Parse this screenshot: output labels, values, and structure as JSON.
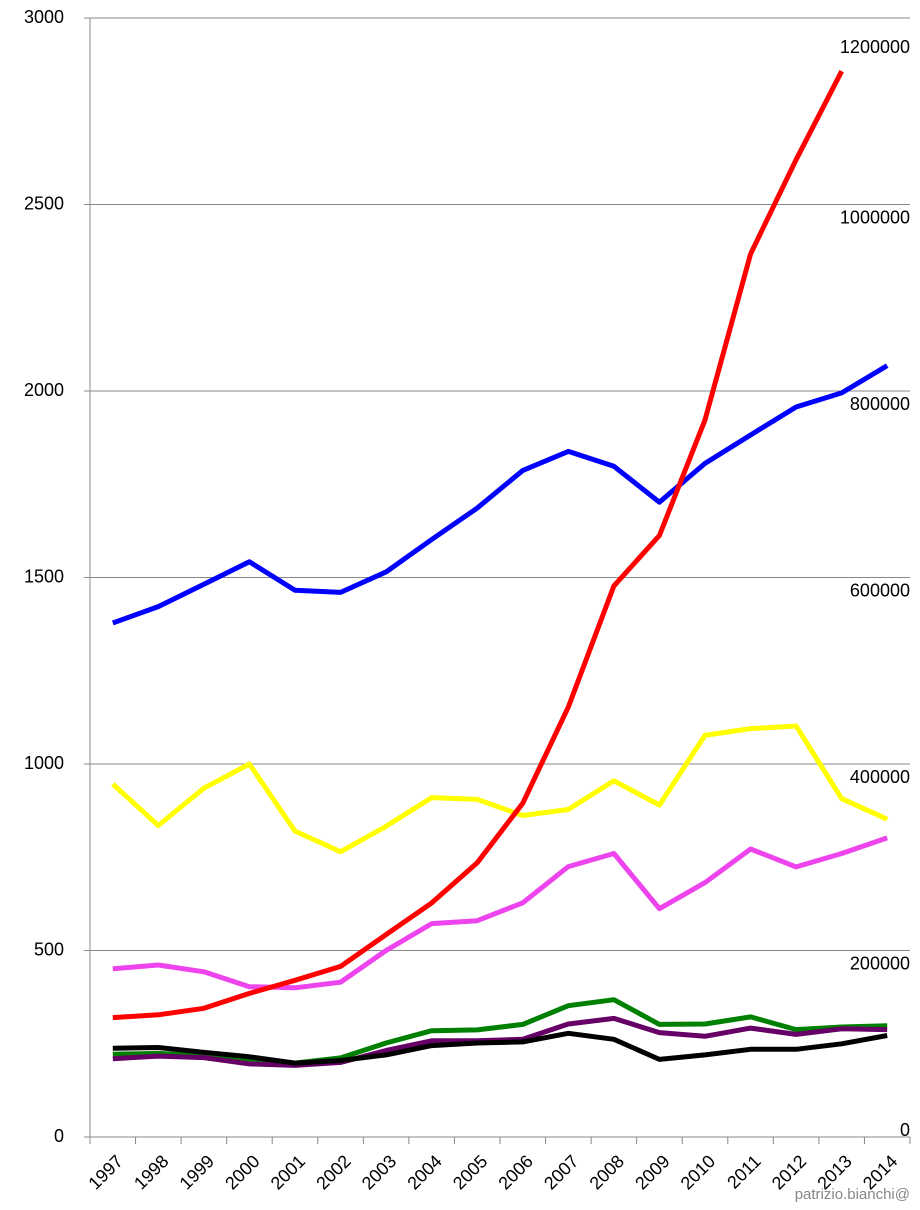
{
  "chart_data": {
    "type": "line",
    "categories": [
      "1997",
      "1998",
      "1999",
      "2000",
      "2001",
      "2002",
      "2003",
      "2004",
      "2005",
      "2006",
      "2007",
      "2008",
      "2009",
      "2010",
      "2011",
      "2012",
      "2013",
      "2014"
    ],
    "series": [
      {
        "color": "#0000ff",
        "values": [
          1378,
          1422,
          1482,
          1542,
          1466,
          1460,
          1515,
          1602,
          1686,
          1787,
          1838,
          1798,
          1702,
          1806,
          1882,
          1957,
          1995,
          2068
        ]
      },
      {
        "color": "#ffff00",
        "values": [
          946,
          835,
          935,
          1000,
          820,
          765,
          833,
          910,
          905,
          862,
          878,
          955,
          890,
          1077,
          1095,
          1102,
          907,
          852
        ]
      },
      {
        "color": "#ee44ee",
        "values": [
          451,
          461,
          443,
          403,
          400,
          415,
          500,
          572,
          580,
          628,
          725,
          760,
          612,
          682,
          772,
          724,
          760,
          802
        ]
      },
      {
        "color": "#008000",
        "values": [
          222,
          224,
          218,
          205,
          198,
          212,
          252,
          285,
          287,
          302,
          352,
          368,
          302,
          303,
          322,
          288,
          295,
          298
        ]
      },
      {
        "color": "#660066",
        "values": [
          210,
          217,
          213,
          196,
          192,
          200,
          232,
          258,
          258,
          262,
          303,
          318,
          280,
          270,
          292,
          275,
          290,
          288
        ]
      },
      {
        "color": "#000000",
        "values": [
          238,
          240,
          227,
          215,
          198,
          205,
          220,
          245,
          252,
          255,
          278,
          262,
          208,
          220,
          235,
          235,
          250,
          272
        ]
      },
      {
        "color": "#ff0000",
        "axis": "y2",
        "values": [
          128000,
          131000,
          138000,
          154000,
          168000,
          183000,
          217000,
          251000,
          294000,
          358000,
          461000,
          591000,
          645000,
          769000,
          947000,
          1048000,
          1143000,
          null
        ]
      }
    ],
    "ylim": [
      0,
      3000
    ],
    "yticks": [
      0,
      500,
      1000,
      1500,
      2000,
      2500,
      3000
    ],
    "y2lim": [
      0,
      1200000
    ],
    "y2ticks": [
      0,
      200000,
      400000,
      600000,
      800000,
      1000000,
      1200000
    ],
    "grid": true,
    "annotation": "patrizio.bianchi@"
  }
}
